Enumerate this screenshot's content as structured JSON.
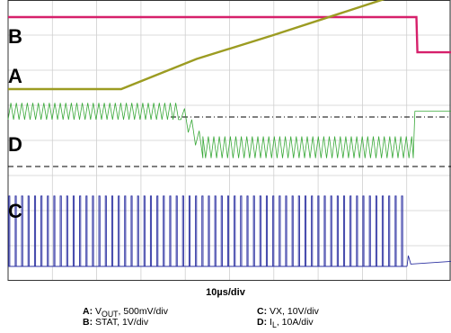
{
  "chart_data": {
    "type": "line",
    "title": "",
    "x_unit": "µs",
    "timebase_label": "10µs/div",
    "channel_markers": [
      "B",
      "A",
      "D",
      "C"
    ],
    "legend": [
      {
        "letter": "A:",
        "name": "V",
        "sub": "OUT",
        "scale": ", 500mV/div"
      },
      {
        "letter": "B:",
        "name": "STAT, 1V/div",
        "sub": "",
        "scale": ""
      },
      {
        "letter": "C:",
        "name": "VX, 10V/div",
        "sub": "",
        "scale": ""
      },
      {
        "letter": "D:",
        "name": "I",
        "sub": "L",
        "scale": ", 10A/div"
      }
    ],
    "series": [
      {
        "name": "A",
        "color": "#9c9c22",
        "unit": "div",
        "points": [
          [
            0,
            0
          ],
          [
            36,
            0
          ],
          [
            60,
            0.9
          ],
          [
            84,
            1.6
          ],
          [
            130,
            3.0
          ],
          [
            136,
            3.1
          ],
          [
            141,
            4.1
          ]
        ]
      },
      {
        "name": "B",
        "color": "#d6206b",
        "unit": "div",
        "points": [
          [
            0,
            0
          ],
          [
            130,
            0
          ],
          [
            130.3,
            -1.05
          ],
          [
            141,
            -1.05
          ]
        ]
      },
      {
        "name": "C",
        "color": "#2a2fa0",
        "unit": "div",
        "level_high": 2.1,
        "level_low": 0,
        "switching_until": 127,
        "settle_value": 0.15
      },
      {
        "name": "D",
        "color": "#38a838",
        "unit": "div",
        "triangle_high": 1.9,
        "triangle_low": 1.4,
        "transition": [
          55,
          62
        ],
        "second_high": 0.9,
        "second_low": 0.25,
        "end_time": 129,
        "final_value": 1.65
      }
    ]
  }
}
